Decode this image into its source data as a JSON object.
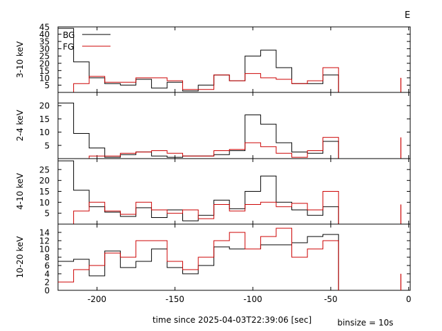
{
  "figure": {
    "corner_label": "E",
    "xlabel": "time since 2025-04-03T22:39:06 [sec]",
    "binsize_label": "binsize = 10s"
  },
  "legend": {
    "bg_label": "BG",
    "fg_label": "FG",
    "placement": "top-left"
  },
  "colors": {
    "bg": "#000000",
    "fg": "#cc0000"
  },
  "chart_data": [
    {
      "type": "line",
      "step": true,
      "ylabel": "3-10 keV",
      "xlim": [
        -225,
        1
      ],
      "ylim": [
        0,
        45
      ],
      "xticks": [
        -200,
        -150,
        -100,
        -50,
        0
      ],
      "yticks": [
        5,
        10,
        15,
        20,
        25,
        30,
        35,
        40,
        45
      ],
      "bin_edges": [
        -225,
        -215,
        -205,
        -195,
        -185,
        -175,
        -165,
        -155,
        -145,
        -135,
        -125,
        -115,
        -105,
        -95,
        -85,
        -75,
        -65,
        -55,
        -45
      ],
      "series": [
        {
          "name": "BG",
          "values": [
            44,
            21,
            10,
            6,
            5,
            9,
            3,
            7,
            1,
            5,
            12,
            8,
            25,
            29,
            17,
            6,
            6,
            12
          ]
        },
        {
          "name": "FG",
          "values": [
            0,
            6,
            11,
            7,
            7,
            10,
            10,
            8,
            2,
            2,
            12,
            8,
            13,
            10,
            9,
            6,
            8,
            17
          ]
        }
      ],
      "spike_x": -5,
      "spike_value": 10
    },
    {
      "type": "line",
      "step": true,
      "ylabel": "2-4 keV",
      "xlim": [
        -225,
        1
      ],
      "ylim": [
        0,
        25
      ],
      "xticks": [
        -200,
        -150,
        -100,
        -50,
        0
      ],
      "yticks": [
        5,
        10,
        15,
        20
      ],
      "bin_edges": [
        -225,
        -215,
        -205,
        -195,
        -185,
        -175,
        -165,
        -155,
        -145,
        -135,
        -125,
        -115,
        -105,
        -95,
        -85,
        -75,
        -65,
        -55,
        -45
      ],
      "series": [
        {
          "name": "BG",
          "values": [
            21,
            9.5,
            4,
            0.5,
            1.5,
            2.5,
            1,
            0.5,
            1,
            1,
            1.5,
            3,
            16.5,
            13,
            6,
            2.5,
            2,
            6.5
          ]
        },
        {
          "name": "FG",
          "values": [
            0,
            0,
            1,
            1,
            2,
            2.5,
            3,
            2,
            1,
            1,
            3,
            3.5,
            6,
            4.5,
            2,
            0.5,
            3,
            8
          ]
        }
      ],
      "spike_x": -5,
      "spike_value": 8
    },
    {
      "type": "line",
      "step": true,
      "ylabel": "4-10 keV",
      "xlim": [
        -225,
        1
      ],
      "ylim": [
        0,
        30
      ],
      "xticks": [
        -200,
        -150,
        -100,
        -50,
        0
      ],
      "yticks": [
        5,
        10,
        15,
        20,
        25
      ],
      "bin_edges": [
        -225,
        -215,
        -205,
        -195,
        -185,
        -175,
        -165,
        -155,
        -145,
        -135,
        -125,
        -115,
        -105,
        -95,
        -85,
        -75,
        -65,
        -55,
        -45
      ],
      "series": [
        {
          "name": "BG",
          "values": [
            29,
            15.5,
            8,
            5.5,
            3.5,
            7.5,
            3,
            6.5,
            1.5,
            4,
            11,
            7,
            15,
            22,
            10,
            6.5,
            4,
            8
          ]
        },
        {
          "name": "FG",
          "values": [
            0,
            6,
            10,
            6,
            4.5,
            10,
            6.5,
            5,
            6.5,
            2.5,
            9,
            6,
            9,
            10,
            8,
            9.5,
            6.5,
            15
          ]
        }
      ],
      "spike_x": -5,
      "spike_value": 9
    },
    {
      "type": "line",
      "step": true,
      "ylabel": "10-20 keV",
      "xlim": [
        -225,
        1
      ],
      "ylim": [
        0,
        16
      ],
      "xticks": [
        -200,
        -150,
        -100,
        -50,
        0
      ],
      "yticks": [
        0,
        2,
        4,
        6,
        8,
        10,
        12,
        14
      ],
      "xticklabels": [
        "-200",
        "-150",
        "-100",
        "-50",
        "0"
      ],
      "bin_edges": [
        -225,
        -215,
        -205,
        -195,
        -185,
        -175,
        -165,
        -155,
        -145,
        -135,
        -125,
        -115,
        -105,
        -95,
        -85,
        -75,
        -65,
        -55,
        -45
      ],
      "series": [
        {
          "name": "BG",
          "values": [
            7,
            7.5,
            3.5,
            9.5,
            5.5,
            7,
            10,
            5.5,
            4,
            6,
            10.5,
            10,
            10,
            11,
            11,
            11.5,
            13,
            13.5
          ]
        },
        {
          "name": "FG",
          "values": [
            2,
            5,
            6,
            9,
            8,
            12,
            12,
            7,
            5,
            8,
            12,
            14,
            10,
            13,
            15,
            8,
            10,
            12
          ]
        }
      ],
      "spike_x": -5,
      "spike_value": 4
    }
  ]
}
